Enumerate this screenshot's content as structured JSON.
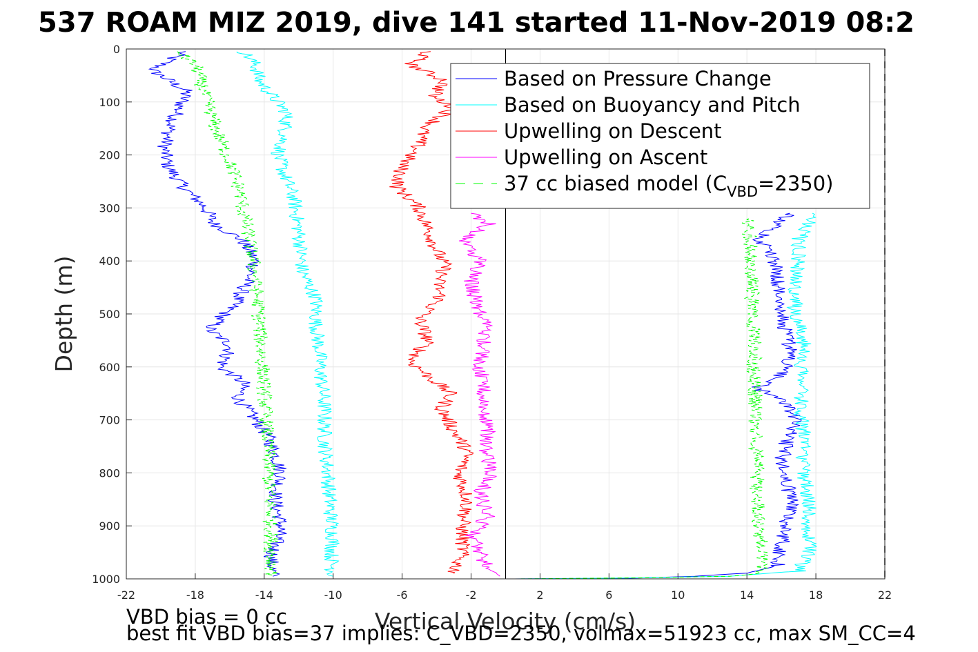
{
  "chart_data": {
    "type": "line",
    "title": "537 ROAM MIZ 2019, dive 141 started 11-Nov-2019 08:2",
    "xlabel": "Vertical Velocity (cm/s)",
    "ylabel": "Depth (m)",
    "xlim": [
      -22,
      22
    ],
    "ylim": [
      1000,
      0
    ],
    "y_reversed": true,
    "grid": true,
    "xticks": [
      -22,
      -18,
      -14,
      -10,
      -6,
      -2,
      2,
      6,
      10,
      14,
      18,
      22
    ],
    "yticks": [
      0,
      100,
      200,
      300,
      400,
      500,
      600,
      700,
      800,
      900,
      1000
    ],
    "zero_line_x": 0,
    "dashed_boundary_x": 22,
    "legend_position": "top-right",
    "series": [
      {
        "name": "Based on Pressure Change",
        "color": "#0000ff",
        "style": "solid",
        "descent": [
          [
            -18.7,
            5
          ],
          [
            -20.5,
            40
          ],
          [
            -19.5,
            60
          ],
          [
            -18.5,
            80
          ],
          [
            -18.9,
            110
          ],
          [
            -19.5,
            150
          ],
          [
            -19.8,
            190
          ],
          [
            -19.6,
            220
          ],
          [
            -18.7,
            260
          ],
          [
            -17.4,
            300
          ],
          [
            -16.9,
            330
          ],
          [
            -15.3,
            360
          ],
          [
            -14.5,
            400
          ],
          [
            -15.0,
            440
          ],
          [
            -15.7,
            480
          ],
          [
            -17.2,
            530
          ],
          [
            -15.9,
            560
          ],
          [
            -16.5,
            600
          ],
          [
            -15.2,
            630
          ],
          [
            -15.5,
            660
          ],
          [
            -14.5,
            700
          ],
          [
            -13.8,
            730
          ],
          [
            -13.4,
            760
          ],
          [
            -13.0,
            800
          ],
          [
            -13.4,
            850
          ],
          [
            -13.0,
            900
          ],
          [
            -13.6,
            960
          ],
          [
            -13.5,
            995
          ]
        ],
        "ascent": [
          [
            0.5,
            1000
          ],
          [
            7,
            999
          ],
          [
            11,
            995
          ],
          [
            14,
            989
          ],
          [
            15.8,
            975
          ],
          [
            16,
            940
          ],
          [
            16.2,
            900
          ],
          [
            16.7,
            860
          ],
          [
            16.3,
            820
          ],
          [
            16.0,
            780
          ],
          [
            16.3,
            740
          ],
          [
            16.8,
            700
          ],
          [
            16.1,
            660
          ],
          [
            14.5,
            640
          ],
          [
            15.8,
            620
          ],
          [
            16.6,
            580
          ],
          [
            16.3,
            540
          ],
          [
            16.1,
            500
          ],
          [
            15.8,
            450
          ],
          [
            15.8,
            420
          ],
          [
            15.5,
            390
          ],
          [
            14.8,
            360
          ],
          [
            15.8,
            330
          ],
          [
            16.5,
            310
          ]
        ]
      },
      {
        "name": "Based on Buoyancy and Pitch",
        "color": "#00ffff",
        "style": "solid",
        "descent": [
          [
            -15.2,
            5
          ],
          [
            -14.5,
            30
          ],
          [
            -14.3,
            60
          ],
          [
            -13.5,
            90
          ],
          [
            -12.7,
            120
          ],
          [
            -12.8,
            160
          ],
          [
            -13.2,
            200
          ],
          [
            -12.8,
            240
          ],
          [
            -12.3,
            280
          ],
          [
            -12.1,
            320
          ],
          [
            -11.9,
            370
          ],
          [
            -11.8,
            420
          ],
          [
            -11.0,
            470
          ],
          [
            -11.0,
            520
          ],
          [
            -10.8,
            570
          ],
          [
            -10.7,
            620
          ],
          [
            -10.5,
            680
          ],
          [
            -10.5,
            740
          ],
          [
            -10.3,
            800
          ],
          [
            -10.2,
            860
          ],
          [
            -10.0,
            920
          ],
          [
            -10.1,
            960
          ],
          [
            -10.0,
            995
          ]
        ],
        "ascent": [
          [
            0.5,
            1000
          ],
          [
            8,
            998
          ],
          [
            13,
            995
          ],
          [
            17,
            985
          ],
          [
            17.6,
            950
          ],
          [
            17.5,
            900
          ],
          [
            17.6,
            860
          ],
          [
            17.4,
            820
          ],
          [
            17.3,
            780
          ],
          [
            17.3,
            740
          ],
          [
            17.2,
            700
          ],
          [
            17.1,
            650
          ],
          [
            17.2,
            600
          ],
          [
            17.3,
            550
          ],
          [
            16.8,
            500
          ],
          [
            16.8,
            450
          ],
          [
            17.0,
            400
          ],
          [
            17.0,
            360
          ],
          [
            17.5,
            330
          ],
          [
            17.8,
            310
          ]
        ]
      },
      {
        "name": "Upwelling on Descent",
        "color": "#ff0000",
        "style": "solid",
        "descent": [
          [
            -4.5,
            5
          ],
          [
            -5.5,
            30
          ],
          [
            -3.5,
            60
          ],
          [
            -4.2,
            90
          ],
          [
            -3.0,
            110
          ],
          [
            -4.7,
            150
          ],
          [
            -5.2,
            190
          ],
          [
            -6.0,
            220
          ],
          [
            -6.3,
            260
          ],
          [
            -5.0,
            300
          ],
          [
            -4.5,
            340
          ],
          [
            -4.0,
            380
          ],
          [
            -3.5,
            410
          ],
          [
            -3.9,
            440
          ],
          [
            -3.8,
            470
          ],
          [
            -5.0,
            510
          ],
          [
            -4.5,
            550
          ],
          [
            -5.5,
            590
          ],
          [
            -4.0,
            630
          ],
          [
            -3.2,
            650
          ],
          [
            -3.7,
            680
          ],
          [
            -3.0,
            720
          ],
          [
            -2.2,
            760
          ],
          [
            -2.7,
            800
          ],
          [
            -2.2,
            850
          ],
          [
            -2.5,
            900
          ],
          [
            -2.5,
            950
          ],
          [
            -3.0,
            990
          ]
        ]
      },
      {
        "name": "Upwelling on Ascent",
        "color": "#ff00ff",
        "style": "solid",
        "ascent": [
          [
            -0.3,
            995
          ],
          [
            -1.0,
            980
          ],
          [
            -1.5,
            950
          ],
          [
            -2.0,
            920
          ],
          [
            -1.0,
            880
          ],
          [
            -1.5,
            840
          ],
          [
            -0.8,
            800
          ],
          [
            -1.2,
            760
          ],
          [
            -1.0,
            720
          ],
          [
            -1.4,
            680
          ],
          [
            -1.2,
            640
          ],
          [
            -1.5,
            600
          ],
          [
            -1.3,
            560
          ],
          [
            -1.2,
            520
          ],
          [
            -1.7,
            480
          ],
          [
            -2.0,
            440
          ],
          [
            -1.5,
            400
          ],
          [
            -2.5,
            360
          ],
          [
            -1.0,
            330
          ],
          [
            -2.0,
            310
          ]
        ]
      },
      {
        "name": "37 cc biased model (C_VBD=2350)",
        "legend_label": "37 cc biased model (C",
        "legend_subscript": "VBD",
        "legend_suffix": "=2350)",
        "color": "#00ff00",
        "style": "dashed",
        "descent": [
          [
            -19,
            5
          ],
          [
            -18.0,
            30
          ],
          [
            -17.6,
            70
          ],
          [
            -17.2,
            110
          ],
          [
            -16.8,
            150
          ],
          [
            -16.3,
            190
          ],
          [
            -15.8,
            230
          ],
          [
            -15.4,
            270
          ],
          [
            -15.2,
            310
          ],
          [
            -14.9,
            350
          ],
          [
            -14.7,
            390
          ],
          [
            -14.5,
            430
          ],
          [
            -14.4,
            470
          ],
          [
            -14.3,
            510
          ],
          [
            -14.2,
            550
          ],
          [
            -14.1,
            600
          ],
          [
            -14.0,
            650
          ],
          [
            -13.9,
            700
          ],
          [
            -13.8,
            750
          ],
          [
            -13.7,
            800
          ],
          [
            -13.7,
            850
          ],
          [
            -13.6,
            900
          ],
          [
            -13.6,
            950
          ],
          [
            -13.5,
            995
          ]
        ],
        "ascent": [
          [
            0.5,
            1000
          ],
          [
            8,
            998
          ],
          [
            13,
            995
          ],
          [
            14.9,
            990
          ],
          [
            14.8,
            950
          ],
          [
            14.7,
            900
          ],
          [
            14.6,
            850
          ],
          [
            14.6,
            800
          ],
          [
            14.5,
            750
          ],
          [
            14.5,
            700
          ],
          [
            14.5,
            650
          ],
          [
            14.4,
            600
          ],
          [
            14.4,
            550
          ],
          [
            14.3,
            500
          ],
          [
            14.3,
            450
          ],
          [
            14.2,
            400
          ],
          [
            14.2,
            360
          ],
          [
            14.1,
            320
          ]
        ]
      }
    ]
  },
  "footnotes": {
    "line1": "VBD bias = 0 cc",
    "line2": "best fit VBD bias=37 implies: C_VBD=2350, volmax=51923 cc, max SM_CC=4"
  },
  "colors": {
    "axes": "#262626",
    "grid": "#e6e6e6"
  }
}
